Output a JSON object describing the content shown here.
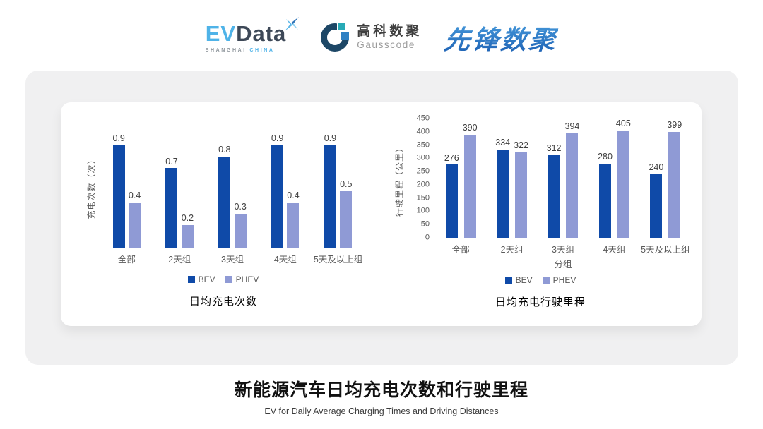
{
  "header": {
    "evdata_logo": {
      "ev": "EV",
      "data": "Data",
      "subtext_left": "SHANGHAI",
      "subtext_right": "CHINA"
    },
    "gausscode_logo": {
      "name_cn": "高科数聚",
      "name_en": "Gausscode"
    },
    "pioneer_logo": {
      "text": "先锋数聚"
    }
  },
  "colors": {
    "series_colors": [
      "#0f4aa8",
      "#8f9ad5"
    ],
    "panel_bg": "#f0f0f1",
    "axis_line": "#dcdcdc"
  },
  "chart_data": [
    {
      "type": "bar",
      "title": "日均充电次数",
      "ylabel": "充电次数（次）",
      "xlabel": "",
      "categories": [
        "全部",
        "2天组",
        "3天组",
        "4天组",
        "5天及以上组"
      ],
      "series": [
        {
          "name": "BEV",
          "values": [
            0.9,
            0.7,
            0.8,
            0.9,
            0.9
          ]
        },
        {
          "name": "PHEV",
          "values": [
            0.4,
            0.2,
            0.3,
            0.4,
            0.5
          ]
        }
      ],
      "ylim": [
        0,
        1
      ],
      "yticks": [],
      "grid": false,
      "legend_position": "bottom"
    },
    {
      "type": "bar",
      "title": "日均充电行驶里程",
      "ylabel": "行驶里程（公里）",
      "xlabel": "分组",
      "categories": [
        "全部",
        "2天组",
        "3天组",
        "4天组",
        "5天及以上组"
      ],
      "series": [
        {
          "name": "BEV",
          "values": [
            276,
            334,
            312,
            280,
            240
          ]
        },
        {
          "name": "PHEV",
          "values": [
            390,
            322,
            394,
            405,
            399
          ]
        }
      ],
      "ylim": [
        0,
        450
      ],
      "yticks": [
        450,
        400,
        350,
        300,
        250,
        200,
        150,
        100,
        50,
        0
      ],
      "grid": false,
      "legend_position": "bottom"
    }
  ],
  "footer": {
    "title": "新能源汽车日均充电次数和行驶里程",
    "subtitle": "EV for Daily Average Charging Times and Driving Distances"
  }
}
